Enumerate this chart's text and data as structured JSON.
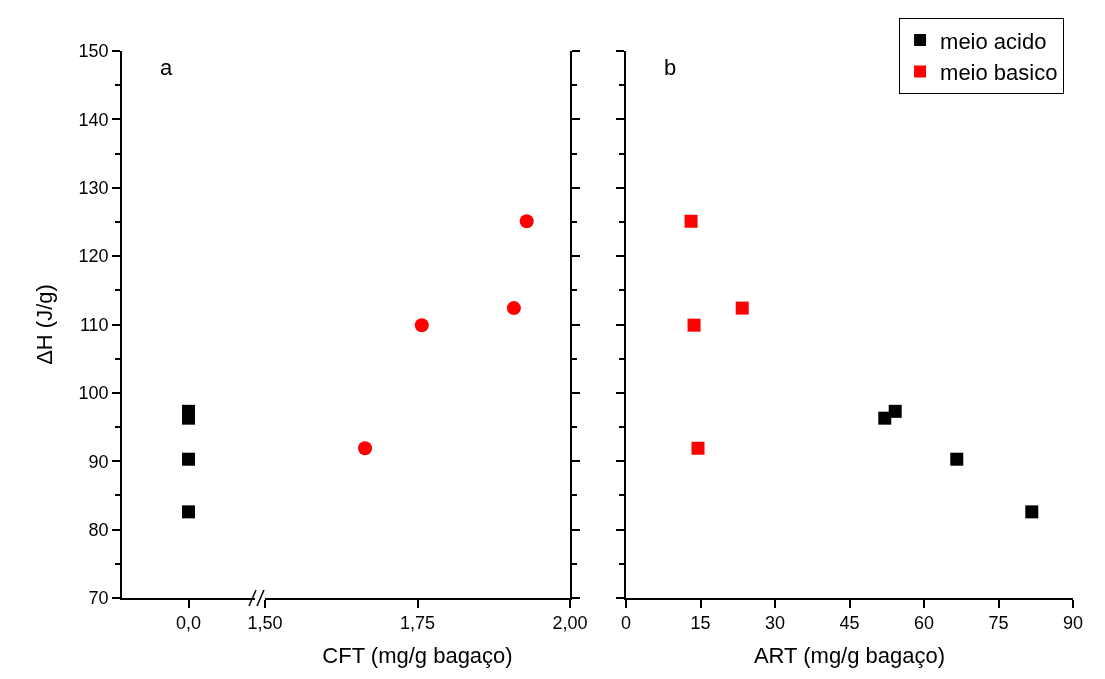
{
  "chart_data": [
    {
      "type": "scatter",
      "ylabel": "ΔH (J/g)",
      "annotations": [
        "a"
      ],
      "marker": "square",
      "categories": [
        "0,0"
      ],
      "ylim": [
        70,
        150
      ],
      "yticks": [
        70,
        80,
        90,
        100,
        110,
        120,
        130,
        140,
        150
      ],
      "legend": false,
      "series": [
        {
          "color": "#000000",
          "x": [
            "0,0",
            "0,0",
            "0,0",
            "0,0"
          ],
          "values": [
            97.3,
            96.3,
            90.3,
            82.6
          ]
        }
      ]
    },
    {
      "type": "scatter",
      "xlabel": "CFT (mg/g bagaço)",
      "marker": "circle",
      "tick_labels": "x",
      "xlim": [
        1.5,
        2.0
      ],
      "xticks": [
        {
          "value": 1.5,
          "label": "1,50"
        },
        {
          "value": 1.75,
          "label": "1,75"
        },
        {
          "value": 2.0,
          "label": "2,00"
        }
      ],
      "ylim": [
        70,
        150
      ],
      "legend": false,
      "series": [
        {
          "color": "#ff0000",
          "x": [
            1.664,
            1.757,
            1.908,
            1.929
          ],
          "values": [
            91.9,
            109.9,
            112.4,
            125.1
          ]
        }
      ]
    },
    {
      "type": "scatter",
      "xlabel": "ART (mg/g bagaço)",
      "annotations": [
        "b"
      ],
      "marker": "square",
      "tick_labels": "x",
      "xlim": [
        0,
        90
      ],
      "xticks": [
        0,
        15,
        30,
        45,
        60,
        75,
        90
      ],
      "ylim": [
        70,
        150
      ],
      "legend": "top right",
      "series": [
        {
          "name": "meio acido",
          "color": "#000000",
          "x": [
            52.1,
            54.2,
            66.6,
            81.7
          ],
          "values": [
            96.3,
            97.3,
            90.3,
            82.6
          ]
        },
        {
          "name": "meio basico",
          "color": "#ff0000",
          "x": [
            13.1,
            13.7,
            23.4,
            14.5
          ],
          "values": [
            125.1,
            109.9,
            112.4,
            91.9
          ]
        }
      ]
    }
  ]
}
